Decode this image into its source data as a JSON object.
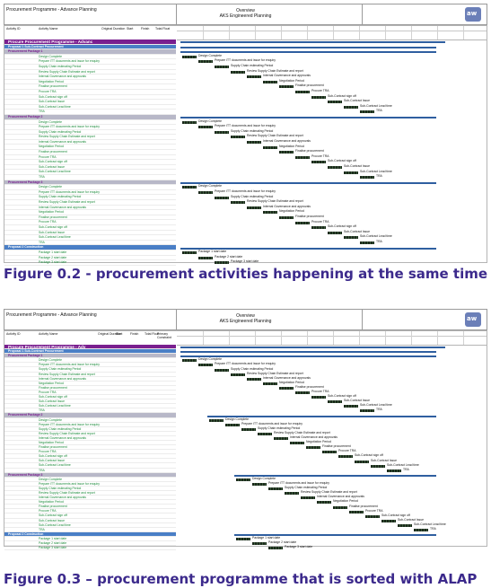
{
  "figures": [
    {
      "header": {
        "title": "Procurement Programme - Advance Planning",
        "overview": "Overview",
        "company": "AKS Engineered Planning"
      },
      "columns": [
        "Activity ID",
        "Activity Name",
        "Original Duration",
        "Start",
        "Finish",
        "Total Float"
      ],
      "rows": [
        {
          "kind": "title",
          "id": "",
          "name": "Procure Procurement Programme - Advanc",
          "dur": "",
          "start": "",
          "finish": "",
          "tf": ""
        },
        {
          "kind": "proposal",
          "id": "",
          "name": "Proposal 1 Sub-Contract Procurement",
          "dur": "",
          "start": "",
          "finish": "",
          "tf": ""
        },
        {
          "kind": "group",
          "id": "",
          "name": "Procurement Package 1",
          "dur": "",
          "start": "",
          "finish": "",
          "tf": ""
        },
        {
          "kind": "task",
          "id": "",
          "name": "Design Complete",
          "dur": "",
          "start": "",
          "finish": "",
          "tf": ""
        },
        {
          "kind": "task",
          "id": "",
          "name": "Prepare ITT documents and issue for enquiry",
          "dur": "",
          "start": "",
          "finish": "",
          "tf": ""
        },
        {
          "kind": "task",
          "id": "",
          "name": "Supply Chain estimating Period",
          "dur": "",
          "start": "",
          "finish": "",
          "tf": ""
        },
        {
          "kind": "task",
          "id": "",
          "name": "Review Supply Chain Estimate and report",
          "dur": "",
          "start": "",
          "finish": "",
          "tf": ""
        },
        {
          "kind": "task",
          "id": "",
          "name": "Internal Governance and approvals",
          "dur": "",
          "start": "",
          "finish": "",
          "tf": ""
        },
        {
          "kind": "task",
          "id": "",
          "name": "Negotiation Period",
          "dur": "",
          "start": "",
          "finish": "",
          "tf": ""
        },
        {
          "kind": "task",
          "id": "",
          "name": "Finalise procurement",
          "dur": "",
          "start": "",
          "finish": "",
          "tf": ""
        },
        {
          "kind": "task",
          "id": "",
          "name": "Procure TRA",
          "dur": "",
          "start": "",
          "finish": "",
          "tf": ""
        },
        {
          "kind": "task",
          "id": "",
          "name": "Sub-Contract sign off",
          "dur": "",
          "start": "",
          "finish": "",
          "tf": ""
        },
        {
          "kind": "task",
          "id": "",
          "name": "Sub-Contract Issue",
          "dur": "",
          "start": "",
          "finish": "",
          "tf": ""
        },
        {
          "kind": "task",
          "id": "",
          "name": "Sub-Contract Lead time",
          "dur": "",
          "start": "",
          "finish": "",
          "tf": ""
        },
        {
          "kind": "task",
          "id": "",
          "name": "TRA",
          "dur": "",
          "start": "",
          "finish": "",
          "tf": ""
        },
        {
          "kind": "group",
          "id": "",
          "name": "Procurement Package 2",
          "dur": "",
          "start": "",
          "finish": "",
          "tf": ""
        },
        {
          "kind": "task",
          "id": "",
          "name": "Design Complete",
          "dur": "",
          "start": "",
          "finish": "",
          "tf": ""
        },
        {
          "kind": "task",
          "id": "",
          "name": "Prepare ITT documents and issue for enquiry",
          "dur": "",
          "start": "",
          "finish": "",
          "tf": ""
        },
        {
          "kind": "task",
          "id": "",
          "name": "Supply Chain estimating Period",
          "dur": "",
          "start": "",
          "finish": "",
          "tf": ""
        },
        {
          "kind": "task",
          "id": "",
          "name": "Review Supply Chain Estimate and report",
          "dur": "",
          "start": "",
          "finish": "",
          "tf": ""
        },
        {
          "kind": "task",
          "id": "",
          "name": "Internal Governance and approvals",
          "dur": "",
          "start": "",
          "finish": "",
          "tf": ""
        },
        {
          "kind": "task",
          "id": "",
          "name": "Negotiation Period",
          "dur": "",
          "start": "",
          "finish": "",
          "tf": ""
        },
        {
          "kind": "task",
          "id": "",
          "name": "Finalise procurement",
          "dur": "",
          "start": "",
          "finish": "",
          "tf": ""
        },
        {
          "kind": "task",
          "id": "",
          "name": "Procure TRA",
          "dur": "",
          "start": "",
          "finish": "",
          "tf": ""
        },
        {
          "kind": "task",
          "id": "",
          "name": "Sub-Contract sign off",
          "dur": "",
          "start": "",
          "finish": "",
          "tf": ""
        },
        {
          "kind": "task",
          "id": "",
          "name": "Sub-Contract Issue",
          "dur": "",
          "start": "",
          "finish": "",
          "tf": ""
        },
        {
          "kind": "task",
          "id": "",
          "name": "Sub-Contract Lead time",
          "dur": "",
          "start": "",
          "finish": "",
          "tf": ""
        },
        {
          "kind": "task",
          "id": "",
          "name": "TRA",
          "dur": "",
          "start": "",
          "finish": "",
          "tf": ""
        },
        {
          "kind": "group",
          "id": "",
          "name": "Procurement Package 3",
          "dur": "",
          "start": "",
          "finish": "",
          "tf": ""
        },
        {
          "kind": "task",
          "id": "",
          "name": "Design Complete",
          "dur": "",
          "start": "",
          "finish": "",
          "tf": ""
        },
        {
          "kind": "task",
          "id": "",
          "name": "Prepare ITT documents and issue for enquiry",
          "dur": "",
          "start": "",
          "finish": "",
          "tf": ""
        },
        {
          "kind": "task",
          "id": "",
          "name": "Supply Chain estimating Period",
          "dur": "",
          "start": "",
          "finish": "",
          "tf": ""
        },
        {
          "kind": "task",
          "id": "",
          "name": "Review Supply Chain Estimate and report",
          "dur": "",
          "start": "",
          "finish": "",
          "tf": ""
        },
        {
          "kind": "task",
          "id": "",
          "name": "Internal Governance and approvals",
          "dur": "",
          "start": "",
          "finish": "",
          "tf": ""
        },
        {
          "kind": "task",
          "id": "",
          "name": "Negotiation Period",
          "dur": "",
          "start": "",
          "finish": "",
          "tf": ""
        },
        {
          "kind": "task",
          "id": "",
          "name": "Finalise procurement",
          "dur": "",
          "start": "",
          "finish": "",
          "tf": ""
        },
        {
          "kind": "task",
          "id": "",
          "name": "Procure TRA",
          "dur": "",
          "start": "",
          "finish": "",
          "tf": ""
        },
        {
          "kind": "task",
          "id": "",
          "name": "Sub-Contract sign off",
          "dur": "",
          "start": "",
          "finish": "",
          "tf": ""
        },
        {
          "kind": "task",
          "id": "",
          "name": "Sub-Contract Issue",
          "dur": "",
          "start": "",
          "finish": "",
          "tf": ""
        },
        {
          "kind": "task",
          "id": "",
          "name": "Sub-Contract Lead time",
          "dur": "",
          "start": "",
          "finish": "",
          "tf": ""
        },
        {
          "kind": "task",
          "id": "",
          "name": "TRA",
          "dur": "",
          "start": "",
          "finish": "",
          "tf": ""
        },
        {
          "kind": "proposal",
          "id": "",
          "name": "Proposal 2 Construction",
          "dur": "",
          "start": "",
          "finish": "",
          "tf": ""
        },
        {
          "kind": "task",
          "id": "",
          "name": "Package 1 start date",
          "dur": "",
          "start": "",
          "finish": "",
          "tf": ""
        },
        {
          "kind": "task",
          "id": "",
          "name": "Package 2 start date",
          "dur": "",
          "start": "",
          "finish": "",
          "tf": ""
        },
        {
          "kind": "task",
          "id": "",
          "name": "Package 3 start date",
          "dur": "",
          "start": "",
          "finish": "",
          "tf": ""
        }
      ],
      "caption": "Figure 0.2 - procurement activities happening at the same time"
    },
    {
      "header": {
        "title": "Procurement Programme - Advance Planning",
        "overview": "Overview",
        "company": "AKS Engineered Planning"
      },
      "columns": [
        "Activity ID",
        "Activity Name",
        "Original Duration",
        "Start",
        "Finish",
        "Total Float",
        "Primary Constraint"
      ],
      "rows": [
        {
          "kind": "title",
          "name": "Procure Procurement Programme - Adv"
        },
        {
          "kind": "proposal",
          "name": "Proposal 1 Sub-Contract Procurement"
        },
        {
          "kind": "group",
          "name": "Procurement Package 1"
        },
        {
          "kind": "task",
          "name": "Design Complete"
        },
        {
          "kind": "task",
          "name": "Prepare ITT documents and issue for enquiry"
        },
        {
          "kind": "task",
          "name": "Supply Chain estimating Period"
        },
        {
          "kind": "task",
          "name": "Review Supply Chain Estimate and report"
        },
        {
          "kind": "task",
          "name": "Internal Governance and approvals"
        },
        {
          "kind": "task",
          "name": "Negotiation Period"
        },
        {
          "kind": "task",
          "name": "Finalise procurement"
        },
        {
          "kind": "task",
          "name": "Procure TRA"
        },
        {
          "kind": "task",
          "name": "Sub-Contract sign off"
        },
        {
          "kind": "task",
          "name": "Sub-Contract Issue"
        },
        {
          "kind": "task",
          "name": "Sub-Contract Lead time"
        },
        {
          "kind": "task",
          "name": "TRA"
        },
        {
          "kind": "group",
          "name": "Procurement Package 2"
        },
        {
          "kind": "task",
          "name": "Design Complete"
        },
        {
          "kind": "task",
          "name": "Prepare ITT documents and issue for enquiry"
        },
        {
          "kind": "task",
          "name": "Supply Chain estimating Period"
        },
        {
          "kind": "task",
          "name": "Review Supply Chain Estimate and report"
        },
        {
          "kind": "task",
          "name": "Internal Governance and approvals"
        },
        {
          "kind": "task",
          "name": "Negotiation Period"
        },
        {
          "kind": "task",
          "name": "Finalise procurement"
        },
        {
          "kind": "task",
          "name": "Procure TRA"
        },
        {
          "kind": "task",
          "name": "Sub-Contract sign off"
        },
        {
          "kind": "task",
          "name": "Sub-Contract Issue"
        },
        {
          "kind": "task",
          "name": "Sub-Contract Lead time"
        },
        {
          "kind": "task",
          "name": "TRA"
        },
        {
          "kind": "group",
          "name": "Procurement Package 3"
        },
        {
          "kind": "task",
          "name": "Design Complete"
        },
        {
          "kind": "task",
          "name": "Prepare ITT documents and issue for enquiry"
        },
        {
          "kind": "task",
          "name": "Supply Chain estimating Period"
        },
        {
          "kind": "task",
          "name": "Review Supply Chain Estimate and report"
        },
        {
          "kind": "task",
          "name": "Internal Governance and approvals"
        },
        {
          "kind": "task",
          "name": "Negotiation Period"
        },
        {
          "kind": "task",
          "name": "Finalise procurement"
        },
        {
          "kind": "task",
          "name": "Procure TRA"
        },
        {
          "kind": "task",
          "name": "Sub-Contract sign off"
        },
        {
          "kind": "task",
          "name": "Sub-Contract Issue"
        },
        {
          "kind": "task",
          "name": "Sub-Contract Lead time"
        },
        {
          "kind": "task",
          "name": "TRA"
        },
        {
          "kind": "proposal",
          "name": "Proposal 2 Construction"
        },
        {
          "kind": "task",
          "name": "Package 1 start date"
        },
        {
          "kind": "task",
          "name": "Package 2 start date"
        },
        {
          "kind": "task",
          "name": "Package 3 start date"
        }
      ],
      "caption": "Figure 0.3 – procurement programme that is sorted with ALAP"
    }
  ]
}
